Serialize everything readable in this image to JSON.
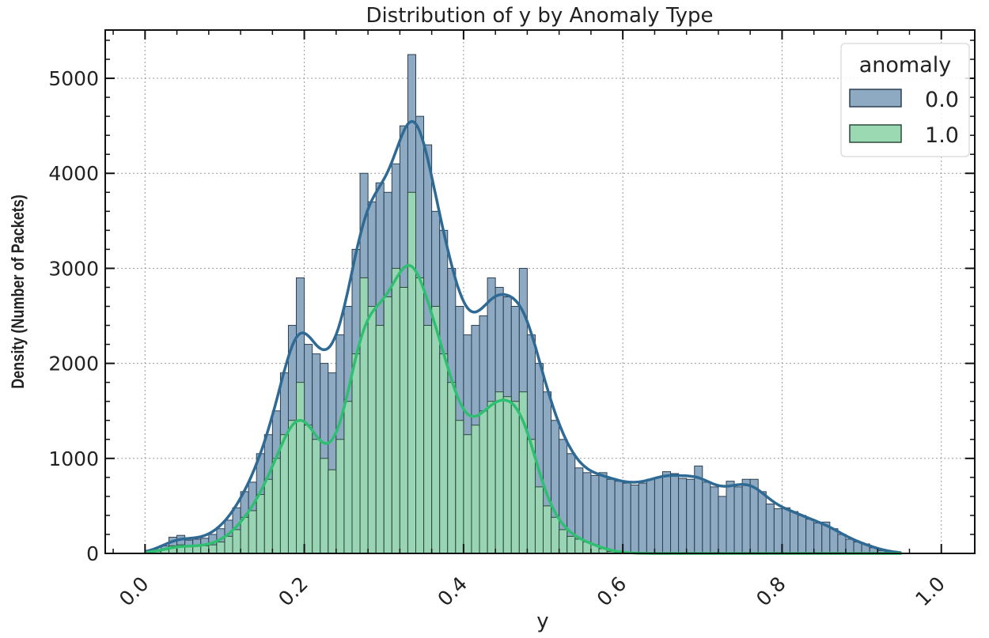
{
  "chart_data": {
    "type": "histogram",
    "title": "Distribution of y by Anomaly Type",
    "xlabel": "y",
    "ylabel": "Density (Number of Packets)",
    "xlim": [
      -0.05,
      1.042
    ],
    "ylim": [
      0,
      5508
    ],
    "xticks": [
      "0.0",
      "0.2",
      "0.4",
      "0.6",
      "0.8",
      "1.0"
    ],
    "xtick_values": [
      0,
      0.2,
      0.4,
      0.6,
      0.8,
      1.0
    ],
    "yticks": [
      "0",
      "1000",
      "2000",
      "3000",
      "4000",
      "5000"
    ],
    "ytick_values": [
      0,
      1000,
      2000,
      3000,
      4000,
      5000
    ],
    "grid": true,
    "bin_width": 0.01,
    "bin_start": 0.0,
    "legend": {
      "title": "anomaly",
      "placement": "top-right"
    },
    "series": [
      {
        "name": "0.0",
        "fill": "#8eaac3",
        "edge": "#2b3f52",
        "line": "#2e6a94",
        "values": [
          10,
          40,
          80,
          170,
          190,
          140,
          150,
          160,
          200,
          260,
          350,
          480,
          650,
          750,
          1050,
          1250,
          1500,
          1900,
          2400,
          2900,
          2200,
          2100,
          2000,
          1900,
          2300,
          2600,
          3200,
          4000,
          3700,
          3900,
          3800,
          4100,
          4500,
          5250,
          4600,
          4300,
          3600,
          3400,
          3000,
          2600,
          2300,
          2400,
          2500,
          2900,
          2800,
          2700,
          2600,
          3000,
          2300,
          2000,
          1700,
          1400,
          1200,
          1050,
          900,
          850,
          820,
          850,
          780,
          760,
          740,
          720,
          740,
          780,
          800,
          860,
          840,
          790,
          780,
          920,
          750,
          700,
          600,
          760,
          700,
          780,
          780,
          650,
          520,
          470,
          480,
          440,
          400,
          360,
          320,
          330,
          260,
          200,
          150,
          120,
          100,
          60,
          30,
          15,
          5
        ]
      },
      {
        "name": "1.0",
        "fill": "#9ad9b2",
        "edge": "#2b4a3a",
        "line": "#2fbf71",
        "values": [
          5,
          20,
          40,
          80,
          90,
          70,
          75,
          80,
          90,
          120,
          180,
          250,
          380,
          450,
          620,
          780,
          1000,
          1250,
          1400,
          1800,
          1350,
          1200,
          1000,
          880,
          1200,
          1600,
          2100,
          2900,
          2600,
          2400,
          2700,
          3000,
          2800,
          3800,
          2900,
          2400,
          2600,
          2100,
          1800,
          1400,
          1250,
          1350,
          1500,
          1600,
          1700,
          1650,
          1600,
          1700,
          1200,
          700,
          500,
          380,
          250,
          180,
          150,
          120,
          90,
          50,
          20,
          10,
          5,
          0,
          0,
          0,
          0,
          0,
          0,
          0,
          0,
          0,
          0,
          0,
          0,
          0,
          0,
          0,
          0,
          0,
          0,
          0,
          0,
          0,
          0,
          0,
          0,
          0,
          0,
          0,
          0,
          0,
          0,
          0,
          0,
          0,
          0
        ]
      }
    ]
  }
}
